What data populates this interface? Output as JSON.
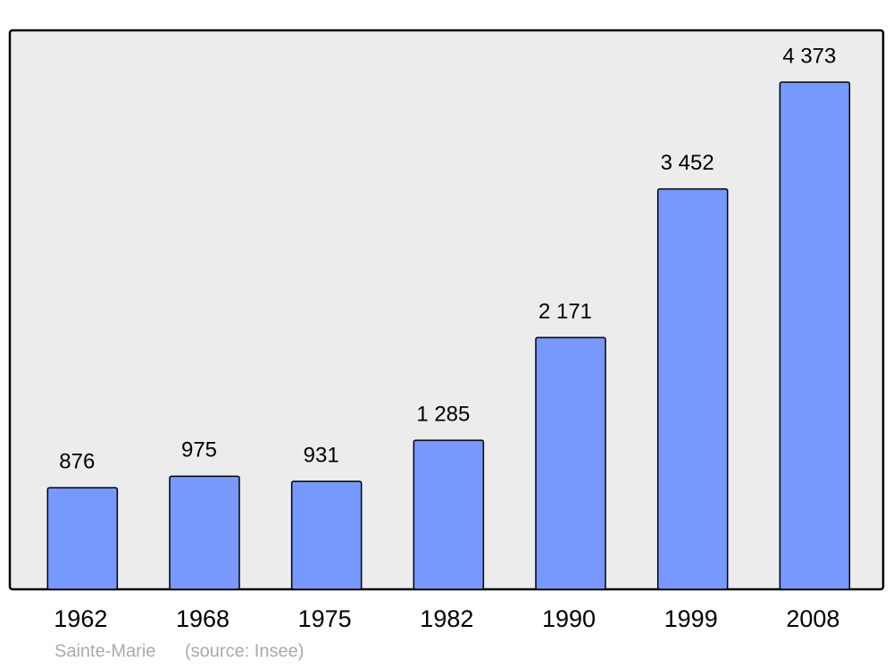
{
  "chart_data": {
    "type": "bar",
    "title": "Sainte-Marie",
    "source": "(source: Insee)",
    "categories": [
      "1962",
      "1968",
      "1975",
      "1982",
      "1990",
      "1999",
      "2008"
    ],
    "values": [
      876,
      975,
      931,
      1285,
      2171,
      3452,
      4373
    ],
    "value_labels": [
      "876",
      "975",
      "931",
      "1 285",
      "2 171",
      "3 452",
      "4 373"
    ],
    "color": "#7799ff"
  }
}
